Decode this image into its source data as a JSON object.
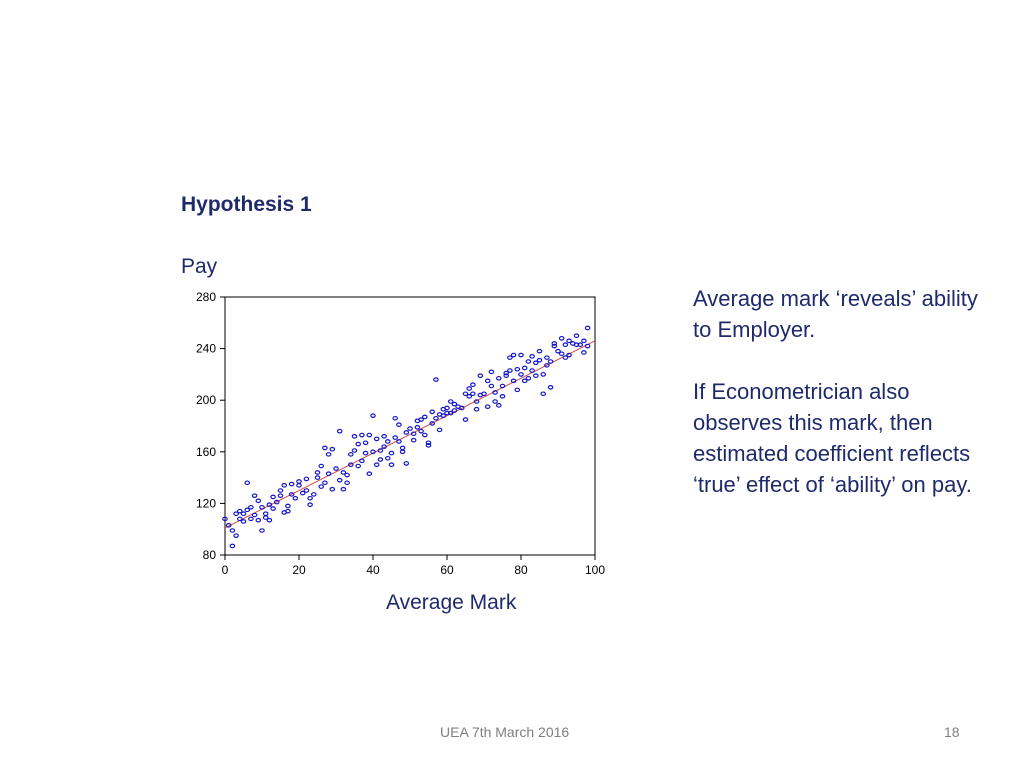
{
  "slide": {
    "title": "Hypothesis 1",
    "y_axis_label": "Pay",
    "x_axis_label": "Average Mark",
    "side_text": [
      "Average mark ‘reveals’ ability to Employer.",
      "If Econometrician also observes this mark, then estimated coefficient reflects ‘true’ effect of ‘ability’ on pay."
    ],
    "footer": "UEA 7th March 2016",
    "page_number": "18"
  },
  "chart_data": {
    "type": "scatter",
    "title": "",
    "xlabel": "Average Mark",
    "ylabel": "Pay",
    "xlim": [
      0,
      100
    ],
    "ylim": [
      80,
      280
    ],
    "x_ticks": [
      "0",
      "20",
      "40",
      "60",
      "80",
      "100"
    ],
    "y_ticks": [
      "280",
      "240",
      "200",
      "160",
      "120",
      "80"
    ],
    "grid": false,
    "point_color": "#1414c8",
    "line_color": "#d04a4a",
    "fit_line": {
      "x": [
        0,
        100
      ],
      "y": [
        101,
        246
      ]
    },
    "series": [
      {
        "points": [
          [
            0,
            108
          ],
          [
            1,
            103
          ],
          [
            2,
            87
          ],
          [
            2,
            99
          ],
          [
            3,
            95
          ],
          [
            3,
            112
          ],
          [
            4,
            108
          ],
          [
            4,
            114
          ],
          [
            5,
            106
          ],
          [
            5,
            112
          ],
          [
            6,
            115
          ],
          [
            6,
            136
          ],
          [
            7,
            117
          ],
          [
            7,
            108
          ],
          [
            8,
            126
          ],
          [
            8,
            111
          ],
          [
            9,
            122
          ],
          [
            9,
            107
          ],
          [
            10,
            99
          ],
          [
            10,
            117
          ],
          [
            11,
            112
          ],
          [
            11,
            109
          ],
          [
            12,
            107
          ],
          [
            12,
            119
          ],
          [
            13,
            125
          ],
          [
            13,
            116
          ],
          [
            14,
            121
          ],
          [
            15,
            130
          ],
          [
            15,
            126
          ],
          [
            16,
            134
          ],
          [
            16,
            113
          ],
          [
            17,
            118
          ],
          [
            17,
            114
          ],
          [
            18,
            127
          ],
          [
            18,
            135
          ],
          [
            19,
            124
          ],
          [
            20,
            137
          ],
          [
            20,
            134
          ],
          [
            21,
            128
          ],
          [
            22,
            139
          ],
          [
            22,
            130
          ],
          [
            23,
            119
          ],
          [
            23,
            124
          ],
          [
            24,
            127
          ],
          [
            25,
            144
          ],
          [
            25,
            140
          ],
          [
            26,
            133
          ],
          [
            26,
            149
          ],
          [
            27,
            136
          ],
          [
            27,
            163
          ],
          [
            28,
            158
          ],
          [
            28,
            143
          ],
          [
            29,
            162
          ],
          [
            29,
            131
          ],
          [
            30,
            147
          ],
          [
            31,
            138
          ],
          [
            31,
            176
          ],
          [
            32,
            144
          ],
          [
            32,
            131
          ],
          [
            33,
            142
          ],
          [
            33,
            136
          ],
          [
            34,
            158
          ],
          [
            34,
            150
          ],
          [
            35,
            172
          ],
          [
            35,
            161
          ],
          [
            36,
            166
          ],
          [
            36,
            149
          ],
          [
            37,
            173
          ],
          [
            37,
            153
          ],
          [
            38,
            159
          ],
          [
            38,
            167
          ],
          [
            39,
            173
          ],
          [
            39,
            143
          ],
          [
            40,
            160
          ],
          [
            40,
            188
          ],
          [
            41,
            150
          ],
          [
            41,
            170
          ],
          [
            42,
            161
          ],
          [
            42,
            154
          ],
          [
            43,
            164
          ],
          [
            43,
            172
          ],
          [
            44,
            155
          ],
          [
            44,
            168
          ],
          [
            45,
            159
          ],
          [
            45,
            150
          ],
          [
            46,
            186
          ],
          [
            46,
            171
          ],
          [
            47,
            181
          ],
          [
            47,
            168
          ],
          [
            48,
            160
          ],
          [
            48,
            163
          ],
          [
            49,
            175
          ],
          [
            49,
            151
          ],
          [
            50,
            178
          ],
          [
            51,
            174
          ],
          [
            51,
            169
          ],
          [
            52,
            179
          ],
          [
            52,
            184
          ],
          [
            53,
            176
          ],
          [
            53,
            185
          ],
          [
            54,
            173
          ],
          [
            54,
            187
          ],
          [
            55,
            167
          ],
          [
            55,
            165
          ],
          [
            56,
            182
          ],
          [
            56,
            191
          ],
          [
            57,
            216
          ],
          [
            57,
            186
          ],
          [
            58,
            189
          ],
          [
            58,
            177
          ],
          [
            59,
            193
          ],
          [
            59,
            188
          ],
          [
            60,
            190
          ],
          [
            60,
            194
          ],
          [
            61,
            199
          ],
          [
            61,
            190
          ],
          [
            62,
            197
          ],
          [
            62,
            192
          ],
          [
            63,
            195
          ],
          [
            64,
            194
          ],
          [
            65,
            185
          ],
          [
            65,
            205
          ],
          [
            66,
            203
          ],
          [
            66,
            209
          ],
          [
            67,
            212
          ],
          [
            67,
            205
          ],
          [
            68,
            199
          ],
          [
            68,
            193
          ],
          [
            69,
            219
          ],
          [
            69,
            204
          ],
          [
            70,
            205
          ],
          [
            71,
            215
          ],
          [
            71,
            195
          ],
          [
            72,
            222
          ],
          [
            72,
            211
          ],
          [
            73,
            206
          ],
          [
            73,
            199
          ],
          [
            74,
            217
          ],
          [
            74,
            196
          ],
          [
            75,
            211
          ],
          [
            75,
            203
          ],
          [
            76,
            219
          ],
          [
            76,
            221
          ],
          [
            77,
            223
          ],
          [
            77,
            233
          ],
          [
            78,
            215
          ],
          [
            78,
            235
          ],
          [
            79,
            224
          ],
          [
            79,
            208
          ],
          [
            80,
            220
          ],
          [
            80,
            235
          ],
          [
            81,
            225
          ],
          [
            81,
            215
          ],
          [
            82,
            230
          ],
          [
            82,
            217
          ],
          [
            83,
            234
          ],
          [
            83,
            223
          ],
          [
            84,
            219
          ],
          [
            84,
            229
          ],
          [
            85,
            238
          ],
          [
            85,
            231
          ],
          [
            86,
            205
          ],
          [
            86,
            220
          ],
          [
            87,
            233
          ],
          [
            87,
            227
          ],
          [
            88,
            230
          ],
          [
            88,
            210
          ],
          [
            89,
            242
          ],
          [
            89,
            244
          ],
          [
            90,
            238
          ],
          [
            91,
            236
          ],
          [
            91,
            248
          ],
          [
            92,
            243
          ],
          [
            92,
            233
          ],
          [
            93,
            246
          ],
          [
            93,
            235
          ],
          [
            94,
            244
          ],
          [
            95,
            250
          ],
          [
            95,
            243
          ],
          [
            96,
            243
          ],
          [
            97,
            237
          ],
          [
            97,
            246
          ],
          [
            98,
            242
          ],
          [
            98,
            256
          ]
        ]
      }
    ]
  }
}
